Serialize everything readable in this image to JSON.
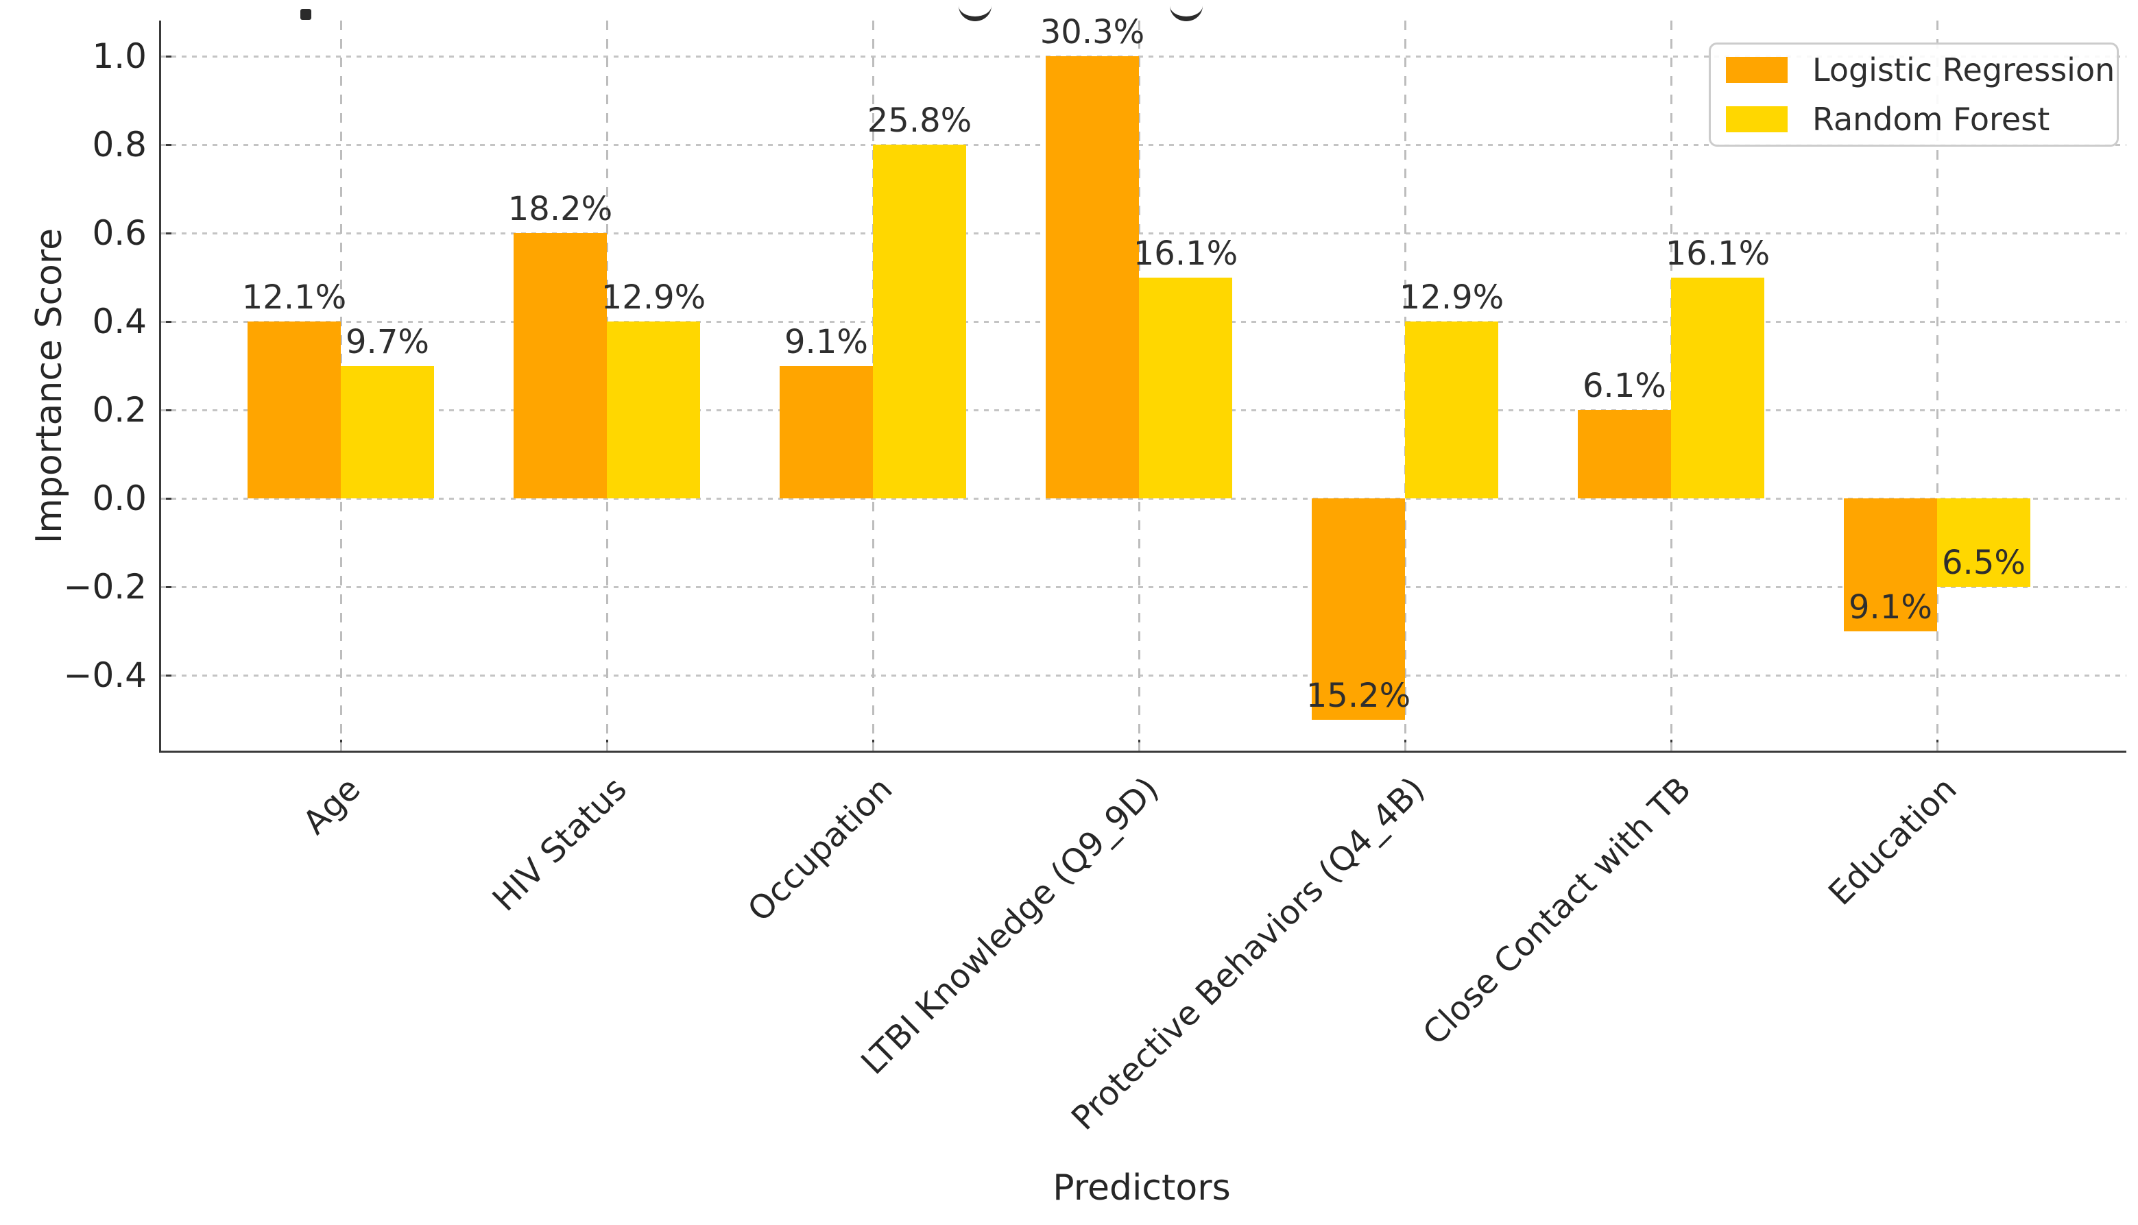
{
  "chart_data": {
    "type": "bar",
    "categories": [
      "Age",
      "HIV Status",
      "Occupation",
      "LTBI Knowledge (Q9_9D)",
      "Protective Behaviors (Q4_4B)",
      "Close Contact with TB",
      "Education"
    ],
    "series": [
      {
        "name": "Logistic Regression",
        "color": "#FFA500",
        "values": [
          0.4,
          0.6,
          0.3,
          1.0,
          -0.5,
          0.2,
          -0.3
        ],
        "labels": [
          "12.1%",
          "18.2%",
          "9.1%",
          "30.3%",
          "15.2%",
          "6.1%",
          "9.1%"
        ]
      },
      {
        "name": "Random Forest",
        "color": "#FFD700",
        "values": [
          0.3,
          0.4,
          0.8,
          0.5,
          0.4,
          0.5,
          -0.2
        ],
        "labels": [
          "9.7%",
          "12.9%",
          "25.8%",
          "16.1%",
          "12.9%",
          "16.1%",
          "6.5%"
        ]
      }
    ],
    "xlabel": "Predictors",
    "ylabel": "Importance Score",
    "ylim": [
      -0.57,
      1.08
    ],
    "yticks": [
      {
        "value": 1.0,
        "label": "1.0"
      },
      {
        "value": 0.8,
        "label": "0.8"
      },
      {
        "value": 0.6,
        "label": "0.6"
      },
      {
        "value": 0.4,
        "label": "0.4"
      },
      {
        "value": 0.2,
        "label": "0.2"
      },
      {
        "value": 0.0,
        "label": "0.0"
      },
      {
        "value": -0.2,
        "label": "−0.2"
      },
      {
        "value": -0.4,
        "label": "−0.4"
      }
    ],
    "grid": true,
    "legend_position": "upper right",
    "colors": {
      "text": "#262626",
      "grid": "#c4c4c4",
      "spine": "#3a3a3a",
      "legend_border": "#cccccc"
    },
    "title_cropped_out_of_frame": true
  }
}
